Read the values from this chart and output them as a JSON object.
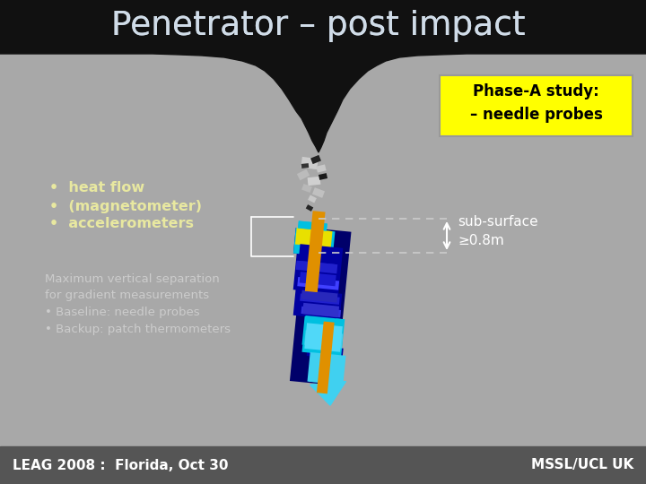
{
  "title": "Penetrator – post impact",
  "title_color": "#d0dce8",
  "bg_color": "#a8a8a8",
  "top_bar_color": "#111111",
  "bottom_bar_color": "#555555",
  "bottom_bar_text_left": "LEAG 2008 :  Florida, Oct 30",
  "bottom_bar_text_right": "MSSL/UCL UK",
  "bottom_text_color": "#ffffff",
  "phase_box_color": "#ffff00",
  "phase_box_text": "Phase-A study:\n– needle probes",
  "phase_box_text_color": "#000000",
  "sub_surface_text": "sub-surface\n≥0.8m",
  "sub_surface_color": "#ffffff",
  "bullet_items": [
    "•  heat flow",
    "•  (magnetometer)",
    "•  accelerometers"
  ],
  "bullet_color": "#e8e8a0",
  "footnote_text": "Maximum vertical separation\nfor gradient measurements\n• Baseline: needle probes\n• Backup: patch thermometers",
  "footnote_color": "#cccccc",
  "penetrator_dark_blue": "#0000a0",
  "penetrator_mid_blue": "#2020cc",
  "penetrator_bright_blue": "#4040ff",
  "penetrator_cyan": "#00c0e0",
  "penetrator_cyan_lower": "#40d0f0",
  "penetrator_fin_color": "#e09000",
  "penetrator_cap_yellow": "#e8e000",
  "white": "#ffffff",
  "dashed_color": "#cccccc"
}
